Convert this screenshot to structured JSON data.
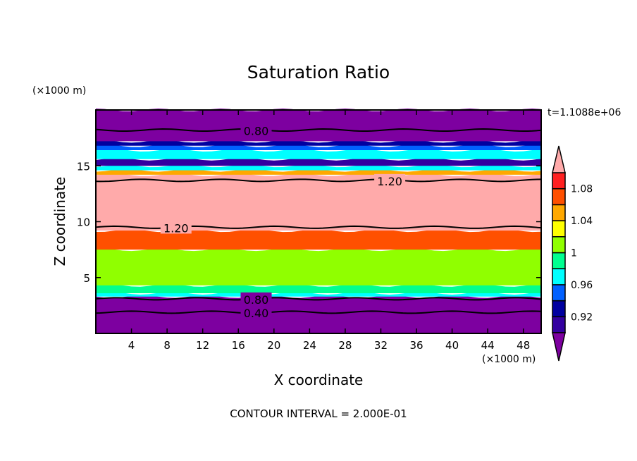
{
  "chart_data": {
    "type": "heatmap",
    "title": "Saturation Ratio",
    "xlabel": "X coordinate",
    "ylabel": "Z coordinate",
    "x_unit": "(×1000 m)",
    "y_unit": "(×1000 m)",
    "xlim": [
      0,
      50
    ],
    "ylim": [
      0,
      20
    ],
    "xticks": [
      4,
      8,
      12,
      16,
      20,
      24,
      28,
      32,
      36,
      40,
      44,
      48
    ],
    "yticks": [
      5,
      10,
      15
    ],
    "time_label": "t=1.1088e+06",
    "footer": "CONTOUR INTERVAL = 2.000E-01",
    "colorbar": {
      "levels": [
        0.9,
        0.92,
        0.94,
        0.96,
        0.98,
        1.0,
        1.02,
        1.04,
        1.06,
        1.08,
        1.1
      ],
      "tick_labels": [
        "0.92",
        "0.96",
        "1",
        "1.04",
        "1.08"
      ],
      "colors": [
        "#3300a0",
        "#0000a0",
        "#0060ff",
        "#00ffff",
        "#00ff90",
        "#90ff00",
        "#ffff00",
        "#ffa800",
        "#ff5000",
        "#ff2020"
      ],
      "under_color": "#7d00a0",
      "over_color": "#ffaaaa"
    },
    "bands": [
      {
        "z0": 0,
        "z1": 3.3,
        "value": "under"
      },
      {
        "z0": 3.3,
        "z1": 3.6,
        "value": 0.97
      },
      {
        "z0": 3.6,
        "z1": 4.3,
        "value": 0.99
      },
      {
        "z0": 4.3,
        "z1": 7.5,
        "value": 1.01
      },
      {
        "z0": 7.5,
        "z1": 9.2,
        "value": 1.07
      },
      {
        "z0": 9.2,
        "z1": 14.2,
        "value": "over"
      },
      {
        "z0": 14.2,
        "z1": 14.6,
        "value": 1.05
      },
      {
        "z0": 14.6,
        "z1": 15.0,
        "value": 0.97
      },
      {
        "z0": 15.0,
        "z1": 15.6,
        "value": 0.91
      },
      {
        "z0": 15.6,
        "z1": 16.4,
        "value": 0.97
      },
      {
        "z0": 16.4,
        "z1": 16.8,
        "value": 0.95
      },
      {
        "z0": 16.8,
        "z1": 17.2,
        "value": 0.93
      },
      {
        "z0": 17.2,
        "z1": 20,
        "value": "under"
      }
    ],
    "contours": [
      {
        "level": "0.80",
        "z": 18.2,
        "label_x": 18
      },
      {
        "level": "1.20",
        "z": 13.7,
        "label_x": 33
      },
      {
        "level": "1.20",
        "z": 9.5,
        "label_x": 9
      },
      {
        "level": "0.80",
        "z": 3.1,
        "label_x": 18
      },
      {
        "level": "0.40",
        "z": 1.9,
        "label_x": 18
      }
    ]
  }
}
